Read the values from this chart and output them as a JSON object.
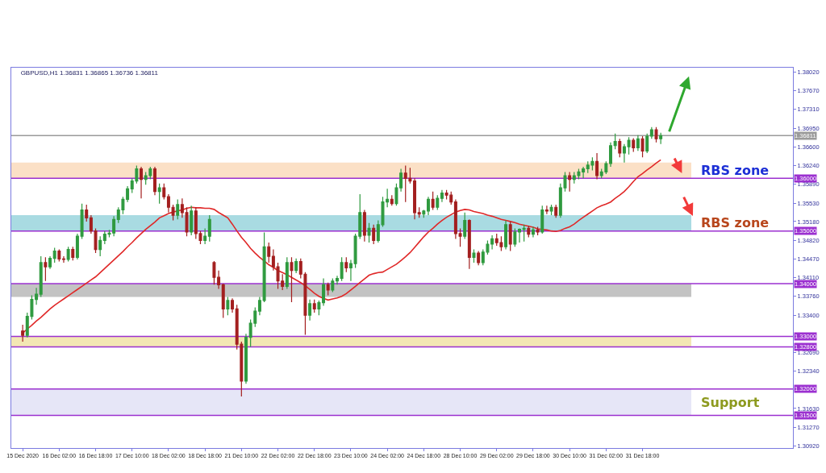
{
  "chart_data": {
    "type": "candlestick",
    "title": "GBPUSD,H1 1.36831 1.36865 1.36736 1.36811",
    "categories": [
      "15 Dec 2020",
      null,
      null,
      null,
      null,
      null,
      null,
      null,
      "16 Dec 02:00",
      null,
      null,
      null,
      null,
      null,
      null,
      null,
      "16 Dec 18:00",
      null,
      null,
      null,
      null,
      null,
      null,
      null,
      "17 Dec 10:00",
      null,
      null,
      null,
      null,
      null,
      null,
      null,
      "18 Dec 02:00",
      null,
      null,
      null,
      null,
      null,
      null,
      null,
      "18 Dec 18:00",
      null,
      null,
      null,
      null,
      null,
      null,
      null,
      "21 Dec 10:00",
      null,
      null,
      null,
      null,
      null,
      null,
      null,
      "22 Dec 02:00",
      null,
      null,
      null,
      null,
      null,
      null,
      null,
      "22 Dec 18:00",
      null,
      null,
      null,
      null,
      null,
      null,
      null,
      "23 Dec 10:00",
      null,
      null,
      null,
      null,
      null,
      null,
      null,
      "24 Dec 02:00",
      null,
      null,
      null,
      null,
      null,
      null,
      null,
      "24 Dec 18:00",
      null,
      null,
      null,
      null,
      null,
      null,
      null,
      "28 Dec 10:00",
      null,
      null,
      null,
      null,
      null,
      null,
      null,
      "29 Dec 02:00",
      null,
      null,
      null,
      null,
      null,
      null,
      null,
      "29 Dec 18:00",
      null,
      null,
      null,
      null,
      null,
      null,
      null,
      "30 Dec 10:00",
      null,
      null,
      null,
      null,
      null,
      null,
      null,
      "31 Dec 02:00",
      null,
      null,
      null,
      null,
      null,
      null,
      null,
      "31 Dec 18:00",
      null,
      null,
      null,
      null
    ],
    "series": [
      {
        "ohlc": [
          [
            1.331,
            1.3322,
            1.329,
            1.3302
          ],
          [
            1.3302,
            1.3345,
            1.3298,
            1.3338
          ],
          [
            1.3338,
            1.3378,
            1.3332,
            1.337
          ],
          [
            1.337,
            1.3392,
            1.336,
            1.338
          ],
          [
            1.338,
            1.3452,
            1.3375,
            1.344
          ],
          [
            1.344,
            1.345,
            1.3405,
            1.3432
          ],
          [
            1.3432,
            1.3452,
            1.3428,
            1.3448
          ],
          [
            1.3448,
            1.3468,
            1.344,
            1.3462
          ],
          [
            1.3462,
            1.3465,
            1.3442,
            1.3447
          ],
          [
            1.3447,
            1.3452,
            1.344,
            1.3446
          ],
          [
            1.3446,
            1.347,
            1.3442,
            1.3465
          ],
          [
            1.3465,
            1.347,
            1.3444,
            1.345
          ],
          [
            1.345,
            1.3495,
            1.3446,
            1.349
          ],
          [
            1.349,
            1.3552,
            1.3485,
            1.354
          ],
          [
            1.354,
            1.355,
            1.3518,
            1.3525
          ],
          [
            1.3525,
            1.353,
            1.3495,
            1.35
          ],
          [
            1.35,
            1.3505,
            1.3458,
            1.3465
          ],
          [
            1.3465,
            1.349,
            1.3452,
            1.3482
          ],
          [
            1.3482,
            1.35,
            1.3475,
            1.3494
          ],
          [
            1.3494,
            1.3502,
            1.3488,
            1.3496
          ],
          [
            1.3496,
            1.3528,
            1.349,
            1.3522
          ],
          [
            1.3522,
            1.3545,
            1.3515,
            1.354
          ],
          [
            1.354,
            1.3565,
            1.3532,
            1.356
          ],
          [
            1.356,
            1.3585,
            1.3555,
            1.358
          ],
          [
            1.358,
            1.36,
            1.3572,
            1.3595
          ],
          [
            1.3595,
            1.3624,
            1.359,
            1.3618
          ],
          [
            1.3618,
            1.3622,
            1.3562,
            1.3598
          ],
          [
            1.3598,
            1.3612,
            1.3588,
            1.3605
          ],
          [
            1.3605,
            1.3622,
            1.3598,
            1.3618
          ],
          [
            1.3618,
            1.3622,
            1.3568,
            1.3575
          ],
          [
            1.3575,
            1.359,
            1.3552,
            1.3582
          ],
          [
            1.3582,
            1.359,
            1.356,
            1.3565
          ],
          [
            1.3565,
            1.357,
            1.3535,
            1.3545
          ],
          [
            1.3545,
            1.355,
            1.352,
            1.353
          ],
          [
            1.353,
            1.356,
            1.3522,
            1.355
          ],
          [
            1.355,
            1.3562,
            1.3525,
            1.3535
          ],
          [
            1.3535,
            1.3545,
            1.349,
            1.3498
          ],
          [
            1.3498,
            1.3548,
            1.3492,
            1.3538
          ],
          [
            1.3538,
            1.3545,
            1.3485,
            1.3495
          ],
          [
            1.3495,
            1.35,
            1.3475,
            1.3482
          ],
          [
            1.3482,
            1.3505,
            1.3475,
            1.349
          ],
          [
            1.349,
            1.353,
            1.348,
            1.3522
          ],
          [
            1.344,
            1.3443,
            1.3398,
            1.3412
          ],
          [
            1.3412,
            1.3425,
            1.339,
            1.3398
          ],
          [
            1.3398,
            1.34,
            1.3335,
            1.3352
          ],
          [
            1.3352,
            1.3375,
            1.334,
            1.3368
          ],
          [
            1.3368,
            1.3372,
            1.3345,
            1.3352
          ],
          [
            1.3352,
            1.336,
            1.3275,
            1.3285
          ],
          [
            1.3285,
            1.329,
            1.3186,
            1.3215
          ],
          [
            1.3215,
            1.3305,
            1.321,
            1.3298
          ],
          [
            1.3298,
            1.3332,
            1.328,
            1.3325
          ],
          [
            1.3325,
            1.3355,
            1.3318,
            1.3348
          ],
          [
            1.3348,
            1.3375,
            1.334,
            1.3368
          ],
          [
            1.3368,
            1.3497,
            1.3365,
            1.347
          ],
          [
            1.347,
            1.3478,
            1.344,
            1.3452
          ],
          [
            1.3452,
            1.3465,
            1.3425,
            1.3432
          ],
          [
            1.3432,
            1.344,
            1.339,
            1.3405
          ],
          [
            1.3405,
            1.3418,
            1.3388,
            1.3395
          ],
          [
            1.3395,
            1.345,
            1.339,
            1.344
          ],
          [
            1.344,
            1.345,
            1.3365,
            1.3425
          ],
          [
            1.3425,
            1.3448,
            1.342,
            1.3442
          ],
          [
            1.3442,
            1.3448,
            1.341,
            1.3418
          ],
          [
            1.3418,
            1.3422,
            1.3303,
            1.334
          ],
          [
            1.334,
            1.337,
            1.333,
            1.3362
          ],
          [
            1.3362,
            1.337,
            1.3345,
            1.3352
          ],
          [
            1.3352,
            1.3368,
            1.334,
            1.3364
          ],
          [
            1.3364,
            1.341,
            1.3358,
            1.3398
          ],
          [
            1.3398,
            1.3402,
            1.3378,
            1.3388
          ],
          [
            1.3388,
            1.341,
            1.3384,
            1.3405
          ],
          [
            1.3405,
            1.3415,
            1.3398,
            1.341
          ],
          [
            1.341,
            1.345,
            1.3405,
            1.344
          ],
          [
            1.344,
            1.345,
            1.3422,
            1.343
          ],
          [
            1.343,
            1.3445,
            1.3405,
            1.3438
          ],
          [
            1.3438,
            1.3495,
            1.343,
            1.349
          ],
          [
            1.349,
            1.357,
            1.3485,
            1.3535
          ],
          [
            1.3535,
            1.354,
            1.348,
            1.3492
          ],
          [
            1.3492,
            1.3515,
            1.3478,
            1.3505
          ],
          [
            1.3505,
            1.3512,
            1.3475,
            1.3482
          ],
          [
            1.3482,
            1.352,
            1.3478,
            1.3512
          ],
          [
            1.3512,
            1.3565,
            1.3508,
            1.3555
          ],
          [
            1.3555,
            1.358,
            1.3545,
            1.356
          ],
          [
            1.356,
            1.3568,
            1.3548,
            1.3552
          ],
          [
            1.3552,
            1.359,
            1.3548,
            1.3582
          ],
          [
            1.3582,
            1.3618,
            1.3575,
            1.361
          ],
          [
            1.361,
            1.3624,
            1.3555,
            1.36
          ],
          [
            1.36,
            1.362,
            1.359,
            1.3595
          ],
          [
            1.3595,
            1.36,
            1.3522,
            1.3535
          ],
          [
            1.3535,
            1.3545,
            1.3525,
            1.3532
          ],
          [
            1.3532,
            1.354,
            1.3525,
            1.3538
          ],
          [
            1.3538,
            1.3565,
            1.353,
            1.356
          ],
          [
            1.356,
            1.3575,
            1.354,
            1.3545
          ],
          [
            1.3545,
            1.3568,
            1.354,
            1.3562
          ],
          [
            1.3562,
            1.3578,
            1.3555,
            1.3572
          ],
          [
            1.3572,
            1.3578,
            1.356,
            1.3568
          ],
          [
            1.3568,
            1.3575,
            1.355,
            1.3555
          ],
          [
            1.3555,
            1.356,
            1.3485,
            1.3495
          ],
          [
            1.3495,
            1.3505,
            1.347,
            1.349
          ],
          [
            1.349,
            1.3535,
            1.3485,
            1.352
          ],
          [
            1.352,
            1.3522,
            1.3428,
            1.345
          ],
          [
            1.345,
            1.3465,
            1.344,
            1.3458
          ],
          [
            1.3458,
            1.3462,
            1.3435,
            1.344
          ],
          [
            1.344,
            1.3465,
            1.3435,
            1.346
          ],
          [
            1.346,
            1.3482,
            1.3455,
            1.3475
          ],
          [
            1.3475,
            1.3492,
            1.3465,
            1.3485
          ],
          [
            1.3485,
            1.3495,
            1.3472,
            1.3478
          ],
          [
            1.3478,
            1.349,
            1.3462,
            1.347
          ],
          [
            1.347,
            1.352,
            1.3465,
            1.3512
          ],
          [
            1.3512,
            1.3518,
            1.3462,
            1.3475
          ],
          [
            1.3475,
            1.3505,
            1.347,
            1.3498
          ],
          [
            1.3498,
            1.3505,
            1.3478,
            1.3503
          ],
          [
            1.3503,
            1.3512,
            1.348,
            1.3505
          ],
          [
            1.3505,
            1.351,
            1.3488,
            1.3494
          ],
          [
            1.3494,
            1.3508,
            1.3488,
            1.3502
          ],
          [
            1.3502,
            1.3508,
            1.3492,
            1.3498
          ],
          [
            1.3498,
            1.3548,
            1.3495,
            1.354
          ],
          [
            1.354,
            1.3548,
            1.3532,
            1.3538
          ],
          [
            1.3538,
            1.355,
            1.353,
            1.3545
          ],
          [
            1.3545,
            1.355,
            1.3525,
            1.353
          ],
          [
            1.353,
            1.359,
            1.3525,
            1.3582
          ],
          [
            1.3582,
            1.3612,
            1.3575,
            1.3605
          ],
          [
            1.3605,
            1.3612,
            1.3575,
            1.3598
          ],
          [
            1.3598,
            1.3612,
            1.359,
            1.3605
          ],
          [
            1.3605,
            1.3618,
            1.3598,
            1.3612
          ],
          [
            1.3612,
            1.3622,
            1.36,
            1.3618
          ],
          [
            1.3618,
            1.3632,
            1.361,
            1.3625
          ],
          [
            1.3625,
            1.364,
            1.3615,
            1.3632
          ],
          [
            1.3632,
            1.3648,
            1.3598,
            1.3605
          ],
          [
            1.3605,
            1.3618,
            1.36,
            1.3612
          ],
          [
            1.3612,
            1.3632,
            1.3608,
            1.3628
          ],
          [
            1.3628,
            1.3668,
            1.3622,
            1.3662
          ],
          [
            1.3662,
            1.3685,
            1.3655,
            1.367
          ],
          [
            1.367,
            1.3675,
            1.364,
            1.3648
          ],
          [
            1.3648,
            1.3665,
            1.363,
            1.366
          ],
          [
            1.366,
            1.3678,
            1.3645,
            1.3672
          ],
          [
            1.3672,
            1.3676,
            1.365,
            1.3658
          ],
          [
            1.3658,
            1.3682,
            1.3652,
            1.3675
          ],
          [
            1.3675,
            1.368,
            1.364,
            1.3652
          ],
          [
            1.3652,
            1.3685,
            1.3648,
            1.368
          ],
          [
            1.368,
            1.3697,
            1.3675,
            1.3692
          ],
          [
            1.3692,
            1.3697,
            1.3668,
            1.3675
          ],
          [
            1.3675,
            1.36865,
            1.3665,
            1.36811
          ]
        ],
        "colors": [
          "#a31f1f",
          "#2f9a3f",
          "#2f9a3f",
          "#2f9a3f",
          "#2f9a3f",
          "#a31f1f",
          "#2f9a3f",
          "#2f9a3f",
          "#a31f1f",
          "#a31f1f",
          "#2f9a3f",
          "#a31f1f",
          "#2f9a3f",
          "#2f9a3f",
          "#a31f1f",
          "#a31f1f",
          "#a31f1f",
          "#2f9a3f",
          "#2f9a3f",
          "#2f9a3f",
          "#2f9a3f",
          "#2f9a3f",
          "#2f9a3f",
          "#2f9a3f",
          "#2f9a3f",
          "#2f9a3f",
          "#a31f1f",
          "#2f9a3f",
          "#2f9a3f",
          "#a31f1f",
          "#2f9a3f",
          "#a31f1f",
          "#a31f1f",
          "#a31f1f",
          "#2f9a3f",
          "#a31f1f",
          "#a31f1f",
          "#2f9a3f",
          "#a31f1f",
          "#a31f1f",
          "#2f9a3f",
          "#2f9a3f",
          "#a31f1f",
          "#a31f1f",
          "#a31f1f",
          "#2f9a3f",
          "#a31f1f",
          "#a31f1f",
          "#a31f1f",
          "#2f9a3f",
          "#2f9a3f",
          "#2f9a3f",
          "#2f9a3f",
          "#2f9a3f",
          "#a31f1f",
          "#a31f1f",
          "#a31f1f",
          "#a31f1f",
          "#2f9a3f",
          "#a31f1f",
          "#2f9a3f",
          "#a31f1f",
          "#a31f1f",
          "#2f9a3f",
          "#a31f1f",
          "#2f9a3f",
          "#2f9a3f",
          "#a31f1f",
          "#2f9a3f",
          "#2f9a3f",
          "#2f9a3f",
          "#a31f1f",
          "#2f9a3f",
          "#2f9a3f",
          "#2f9a3f",
          "#a31f1f",
          "#2f9a3f",
          "#a31f1f",
          "#2f9a3f",
          "#2f9a3f",
          "#2f9a3f",
          "#a31f1f",
          "#2f9a3f",
          "#2f9a3f",
          "#a31f1f",
          "#a31f1f",
          "#a31f1f",
          "#a31f1f",
          "#2f9a3f",
          "#2f9a3f",
          "#a31f1f",
          "#2f9a3f",
          "#2f9a3f",
          "#a31f1f",
          "#a31f1f",
          "#a31f1f",
          "#a31f1f",
          "#2f9a3f",
          "#a31f1f",
          "#2f9a3f",
          "#a31f1f",
          "#2f9a3f",
          "#2f9a3f",
          "#2f9a3f",
          "#a31f1f",
          "#a31f1f",
          "#2f9a3f",
          "#a31f1f",
          "#2f9a3f",
          "#2f9a3f",
          "#2f9a3f",
          "#a31f1f",
          "#2f9a3f",
          "#a31f1f",
          "#2f9a3f",
          "#a31f1f",
          "#2f9a3f",
          "#a31f1f",
          "#2f9a3f",
          "#2f9a3f",
          "#a31f1f",
          "#2f9a3f",
          "#2f9a3f",
          "#2f9a3f",
          "#2f9a3f",
          "#2f9a3f",
          "#a31f1f",
          "#2f9a3f",
          "#2f9a3f",
          "#2f9a3f",
          "#2f9a3f",
          "#a31f1f",
          "#2f9a3f",
          "#2f9a3f",
          "#a31f1f",
          "#2f9a3f",
          "#a31f1f",
          "#2f9a3f",
          "#2f9a3f",
          "#a31f1f",
          "#2f9a3f"
        ]
      },
      {
        "type": "line",
        "color": "#e02828",
        "values": [
          1.3306,
          1.3314,
          1.3321,
          1.3329,
          1.3336,
          1.3344,
          1.3352,
          1.3359,
          1.3365,
          1.3371,
          1.3377,
          1.3383,
          1.3389,
          1.3395,
          1.3401,
          1.3407,
          1.3413,
          1.3421,
          1.3429,
          1.3437,
          1.3445,
          1.3453,
          1.3461,
          1.347,
          1.3478,
          1.3487,
          1.3495,
          1.3503,
          1.351,
          1.3517,
          1.3525,
          1.3529,
          1.3533,
          1.3536,
          1.3538,
          1.354,
          1.3543,
          1.3545,
          1.3544,
          1.3544,
          1.3543,
          1.3543,
          1.3541,
          1.3535,
          1.353,
          1.3525,
          1.3513,
          1.35,
          1.3488,
          1.3478,
          1.3467,
          1.3458,
          1.345,
          1.3443,
          1.3436,
          1.3431,
          1.3425,
          1.3421,
          1.3417,
          1.3412,
          1.3407,
          1.3402,
          1.3396,
          1.3389,
          1.3382,
          1.3376,
          1.3372,
          1.3369,
          1.3371,
          1.3373,
          1.3376,
          1.3381,
          1.3388,
          1.3395,
          1.3402,
          1.3409,
          1.3416,
          1.3419,
          1.3421,
          1.3422,
          1.3427,
          1.3432,
          1.3437,
          1.3444,
          1.3451,
          1.3459,
          1.3469,
          1.3479,
          1.3489,
          1.3498,
          1.3505,
          1.3513,
          1.352,
          1.3526,
          1.3531,
          1.3536,
          1.3539,
          1.3541,
          1.354,
          1.3537,
          1.3535,
          1.3533,
          1.353,
          1.3528,
          1.3525,
          1.3522,
          1.352,
          1.3518,
          1.3516,
          1.3513,
          1.3511,
          1.3509,
          1.3507,
          1.3504,
          1.3503,
          1.3502,
          1.35,
          1.3499,
          1.3501,
          1.3505,
          1.3508,
          1.3513,
          1.352,
          1.3526,
          1.3532,
          1.3538,
          1.3544,
          1.3548,
          1.3551,
          1.3555,
          1.3562,
          1.3568,
          1.3575,
          1.3584,
          1.3594,
          1.3603,
          1.3609,
          1.3616,
          1.3622,
          1.3629,
          1.3635
        ]
      }
    ],
    "ylim": [
      1.3088,
      1.381
    ],
    "yticks": [
      {
        "value": 1.3802,
        "label": "1.38020"
      },
      {
        "value": 1.3767,
        "label": "1.37670"
      },
      {
        "value": 1.3731,
        "label": "1.37310"
      },
      {
        "value": 1.3695,
        "label": "1.36950"
      },
      {
        "value": 1.366,
        "label": "1.36600"
      },
      {
        "value": 1.3624,
        "label": "1.36240"
      },
      {
        "value": 1.3589,
        "label": "1.35890"
      },
      {
        "value": 1.3553,
        "label": "1.35530"
      },
      {
        "value": 1.3518,
        "label": "1.35180"
      },
      {
        "value": 1.3482,
        "label": "1.34820"
      },
      {
        "value": 1.3447,
        "label": "1.34470"
      },
      {
        "value": 1.3411,
        "label": "1.34110"
      },
      {
        "value": 1.3376,
        "label": "1.33760"
      },
      {
        "value": 1.334,
        "label": "1.33400"
      },
      {
        "value": 1.3269,
        "label": "1.32690"
      },
      {
        "value": 1.3234,
        "label": "1.32340"
      },
      {
        "value": 1.3163,
        "label": "1.31630"
      },
      {
        "value": 1.3127,
        "label": "1.31270"
      },
      {
        "value": 1.3092,
        "label": "1.30920"
      }
    ],
    "ref_lines": [
      {
        "axis": "y",
        "value": 1.36811,
        "label": "1.36811",
        "color": "#9a9a9a"
      },
      {
        "axis": "y",
        "value": 1.36,
        "label": "1.36000",
        "color": "#9b30d0"
      },
      {
        "axis": "y",
        "value": 1.35,
        "label": "1.35000",
        "color": "#9b30d0"
      },
      {
        "axis": "y",
        "value": 1.34,
        "label": "1.34000",
        "color": "#9b30d0"
      },
      {
        "axis": "y",
        "value": 1.33,
        "label": "1.33000",
        "color": "#9b30d0"
      },
      {
        "axis": "y",
        "value": 1.328,
        "label": "1.32800",
        "color": "#9b30d0"
      },
      {
        "axis": "y",
        "value": 1.32,
        "label": "1.32000",
        "color": "#9b30d0"
      },
      {
        "axis": "y",
        "value": 1.315,
        "label": "1.31500",
        "color": "#9b30d0"
      }
    ],
    "bands": [
      {
        "axis": "y",
        "from": 1.36,
        "to": 1.363,
        "label": "RBS zone",
        "color": "#fbe0c6"
      },
      {
        "axis": "y",
        "from": 1.35,
        "to": 1.353,
        "label": "RBS zone",
        "color": "#a9dbe2"
      },
      {
        "axis": "y",
        "from": 1.3375,
        "to": 1.34,
        "color": "#c3c3c3"
      },
      {
        "axis": "y",
        "from": 1.328,
        "to": 1.33,
        "color": "#f3e7b3"
      },
      {
        "axis": "y",
        "from": 1.315,
        "to": 1.32,
        "label": "Support",
        "color": "#e6e6f7"
      }
    ]
  }
}
